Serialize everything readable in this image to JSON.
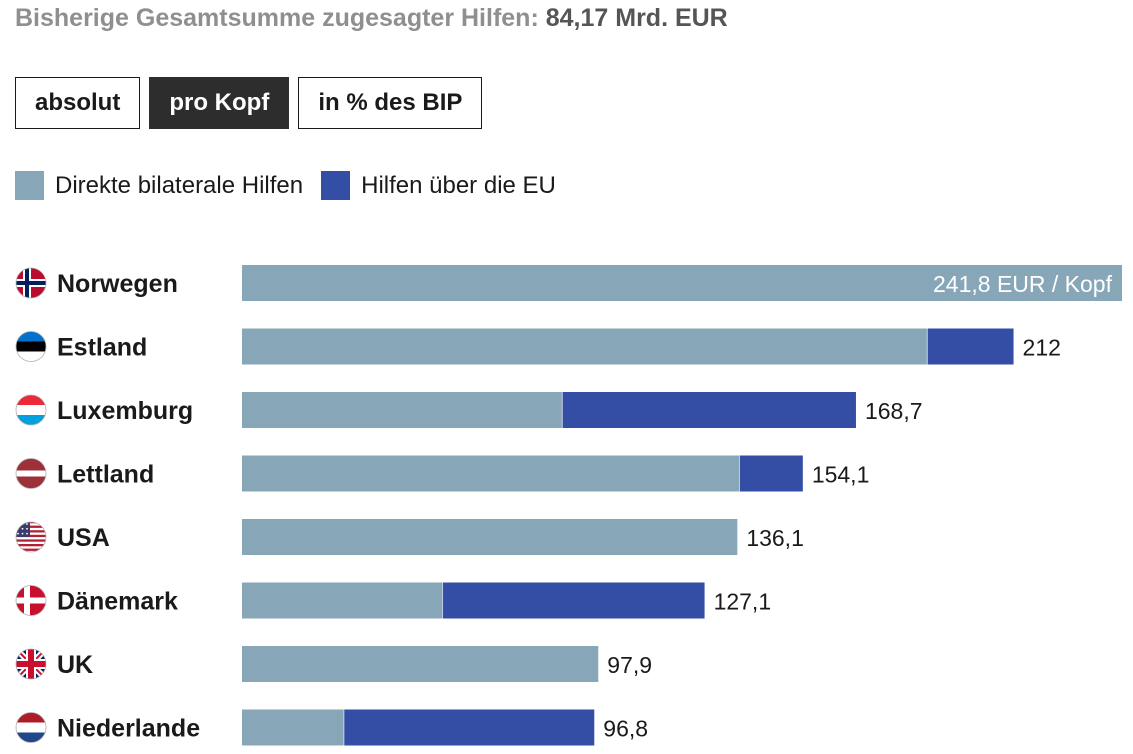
{
  "header": {
    "label": "Bisherige Gesamtsumme zugesagter Hilfen:",
    "total": "84,17 Mrd. EUR"
  },
  "tabs": [
    {
      "label": "absolut",
      "active": false
    },
    {
      "label": "pro Kopf",
      "active": true
    },
    {
      "label": "in % des BIP",
      "active": false
    }
  ],
  "colors": {
    "bilateral": "#87a7b8",
    "eu": "#344ea5",
    "text": "#1a1a1a",
    "inside_label": "#ffffff"
  },
  "chart_data": {
    "type": "bar",
    "orientation": "horizontal",
    "stacked": true,
    "unit_label": "EUR / Kopf",
    "xlim": [
      0,
      241.8
    ],
    "legend": "top-left",
    "series": [
      {
        "name": "Direkte bilaterale Hilfen",
        "color": "#87a7b8",
        "values": [
          241.8,
          188.3,
          88.0,
          136.7,
          136.1,
          55.1,
          97.9,
          28.0
        ]
      },
      {
        "name": "Hilfen über die EU",
        "color": "#344ea5",
        "values": [
          0,
          23.7,
          80.7,
          17.4,
          0,
          72.0,
          0,
          68.8
        ]
      }
    ],
    "categories": [
      "Norwegen",
      "Estland",
      "Luxemburg",
      "Lettland",
      "USA",
      "Dänemark",
      "UK",
      "Niederlande"
    ],
    "totals": [
      241.8,
      212,
      168.7,
      154.1,
      136.1,
      127.1,
      97.9,
      96.8
    ],
    "total_labels": [
      "241,8 EUR / Kopf",
      "212",
      "168,7",
      "154,1",
      "136,1",
      "127,1",
      "97,9",
      "96,8"
    ],
    "flags": [
      "norway-flag",
      "estonia-flag",
      "luxembourg-flag",
      "latvia-flag",
      "usa-flag",
      "denmark-flag",
      "uk-flag",
      "netherlands-flag"
    ]
  }
}
